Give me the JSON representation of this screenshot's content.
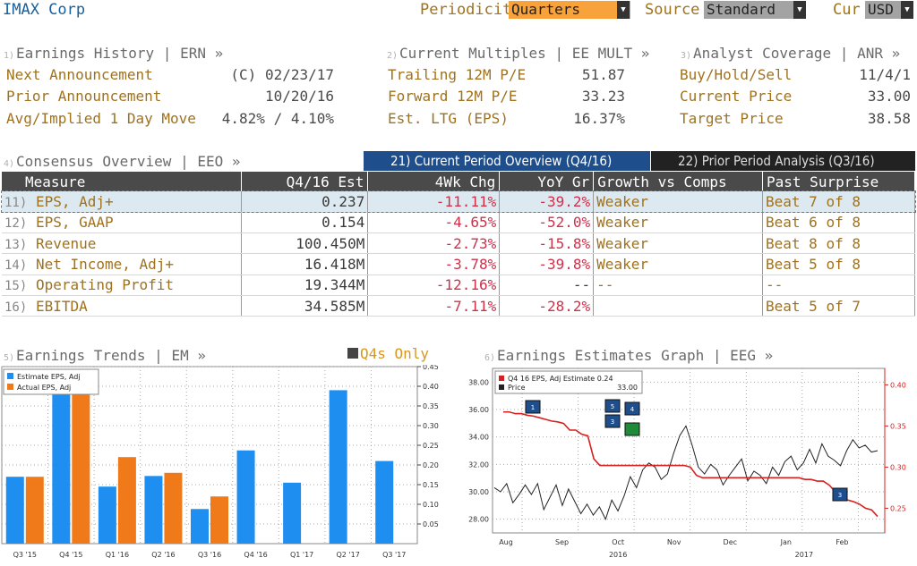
{
  "header": {
    "title": "IMAX Corp",
    "periodicity_label": "Periodicity",
    "periodicity_value": "Quarters",
    "source_label": "Source",
    "source_value": "Standard",
    "currency_label": "Cur",
    "currency_value": "USD"
  },
  "earnings_history": {
    "number": "1)",
    "heading": "Earnings History | ERN »",
    "rows": [
      {
        "label": "Next Announcement",
        "value": "(C)  02/23/17"
      },
      {
        "label": "Prior Announcement",
        "value": "10/20/16"
      },
      {
        "label": "Avg/Implied 1 Day Move",
        "value": "4.82% / 4.10%"
      }
    ]
  },
  "current_multiples": {
    "number": "2)",
    "heading": "Current Multiples | EE MULT »",
    "rows": [
      {
        "label": "Trailing 12M P/E",
        "value": "51.87"
      },
      {
        "label": "Forward 12M P/E",
        "value": "33.23"
      },
      {
        "label": "Est. LTG (EPS)",
        "value": "16.37%"
      }
    ]
  },
  "analyst_coverage": {
    "number": "3)",
    "heading": "Analyst Coverage | ANR »",
    "rows": [
      {
        "label": "Buy/Hold/Sell",
        "value": "11/4/1"
      },
      {
        "label": "Current Price",
        "value": "33.00"
      },
      {
        "label": "Target Price",
        "value": "38.58"
      }
    ]
  },
  "consensus": {
    "number": "4)",
    "heading": "Consensus Overview | EEO »",
    "tab_current": "21) Current Period Overview (Q4/16)",
    "tab_prior": "22) Prior Period Analysis (Q3/16)",
    "columns": [
      "Measure",
      "Q4/16 Est",
      "4Wk Chg",
      "YoY Gr",
      "Growth vs Comps",
      "Past Surprise"
    ],
    "rows": [
      {
        "num": "11)",
        "measure": "EPS, Adj+",
        "est": "0.237",
        "chg": "-11.11%",
        "yoy": "-39.2%",
        "growth": "Weaker",
        "surprise": "Beat 7 of 8"
      },
      {
        "num": "12)",
        "measure": "EPS, GAAP",
        "est": "0.154",
        "chg": "-4.65%",
        "yoy": "-52.0%",
        "growth": "Weaker",
        "surprise": "Beat 6 of 8"
      },
      {
        "num": "13)",
        "measure": "Revenue",
        "est": "100.450M",
        "chg": "-2.73%",
        "yoy": "-15.8%",
        "growth": "Weaker",
        "surprise": "Beat 8 of 8"
      },
      {
        "num": "14)",
        "measure": "Net Income, Adj+",
        "est": "16.418M",
        "chg": "-3.78%",
        "yoy": "-39.8%",
        "growth": "Weaker",
        "surprise": "Beat 5 of 8"
      },
      {
        "num": "15)",
        "measure": "Operating Profit",
        "est": "19.344M",
        "chg": "-12.16%",
        "yoy": "--",
        "growth": "--",
        "surprise": "--"
      },
      {
        "num": "16)",
        "measure": "EBITDA",
        "est": "34.585M",
        "chg": "-7.11%",
        "yoy": "-28.2%",
        "growth": "",
        "surprise": "Beat 5 of 7"
      }
    ]
  },
  "earnings_trends": {
    "number": "5)",
    "heading": "Earnings Trends | EM »",
    "toggle_label": "Q4s Only"
  },
  "earnings_graph": {
    "number": "6)",
    "heading": "Earnings Estimates Graph | EEG »"
  },
  "colors": {
    "estimate": "#1e8ff0",
    "actual": "#f07a1a",
    "price_line": "#222222",
    "estimate_line": "#d8201e",
    "amber": "#a0721e",
    "header_dark": "#4a4a4a",
    "tab_active": "#1f4e8c",
    "tab_inactive": "#222222",
    "dropdown_orange": "#f7a23b"
  },
  "chart_data": [
    {
      "type": "bar",
      "categories": [
        "Q3 '15",
        "Q4 '15",
        "Q1 '16",
        "Q2 '16",
        "Q3 '16",
        "Q4 '16",
        "Q1 '17",
        "Q2 '17",
        "Q3 '17"
      ],
      "series": [
        {
          "name": "Estimate EPS, Adj",
          "values": [
            0.17,
            0.43,
            0.145,
            0.172,
            0.088,
            0.237,
            0.155,
            0.39,
            0.21
          ]
        },
        {
          "name": "Actual EPS, Adj",
          "values": [
            0.17,
            0.43,
            0.22,
            0.18,
            0.12,
            null,
            null,
            null,
            null
          ]
        }
      ],
      "ylim": [
        0,
        0.45
      ],
      "yticks": [
        "0.05",
        "0.10",
        "0.15",
        "0.20",
        "0.25",
        "0.30",
        "0.35",
        "0.40",
        "0.45"
      ],
      "legend": "top-left",
      "grid": true
    },
    {
      "type": "line",
      "legend_entries": [
        {
          "name": "Q4 16 EPS, Adj Estimate",
          "value": "0.24"
        },
        {
          "name": "Price",
          "value": "33.00"
        }
      ],
      "x_labels": [
        "Aug",
        "Sep",
        "Oct",
        "Nov",
        "Dec",
        "Jan",
        "Feb"
      ],
      "year_labels": [
        "2016",
        "2017"
      ],
      "left_axis": {
        "ticks": [
          "28.00",
          "30.00",
          "32.00",
          "34.00",
          "36.00",
          "38.00"
        ],
        "ylim": [
          27,
          39
        ]
      },
      "right_axis": {
        "ticks": [
          "0.25",
          "0.30",
          "0.35",
          "0.40"
        ],
        "ylim": [
          0.22,
          0.42
        ]
      },
      "price_series": [
        30.3,
        30.0,
        30.6,
        29.2,
        29.8,
        30.5,
        29.8,
        30.6,
        28.7,
        29.6,
        30.5,
        29.0,
        30.2,
        29.3,
        28.4,
        29.1,
        28.3,
        28.9,
        28.0,
        29.4,
        28.6,
        29.7,
        31.1,
        30.3,
        31.6,
        32.1,
        31.8,
        30.9,
        31.3,
        32.8,
        34.1,
        34.8,
        33.4,
        31.8,
        31.3,
        32.0,
        31.6,
        30.5,
        31.2,
        31.8,
        32.4,
        30.8,
        31.5,
        31.2,
        30.6,
        31.8,
        31.2,
        32.2,
        32.6,
        31.6,
        32.1,
        33.1,
        32.1,
        33.5,
        32.6,
        32.3,
        31.9,
        33.0,
        33.8,
        33.2,
        33.4,
        32.9,
        33.0
      ],
      "estimate_series": [
        0.367,
        0.367,
        0.365,
        0.365,
        0.363,
        0.362,
        0.36,
        0.358,
        0.356,
        0.355,
        0.353,
        0.345,
        0.345,
        0.34,
        0.338,
        0.31,
        0.302,
        0.302,
        0.302,
        0.302,
        0.302,
        0.302,
        0.302,
        0.302,
        0.302,
        0.302,
        0.302,
        0.302,
        0.302,
        0.302,
        0.302,
        0.3,
        0.29,
        0.287,
        0.287,
        0.287,
        0.287,
        0.287,
        0.287,
        0.287,
        0.287,
        0.287,
        0.287,
        0.287,
        0.287,
        0.287,
        0.287,
        0.287,
        0.287,
        0.287,
        0.285,
        0.285,
        0.283,
        0.283,
        0.278,
        0.27,
        0.265,
        0.26,
        0.258,
        0.255,
        0.25,
        0.248,
        0.24
      ],
      "event_markers": [
        "1",
        "5",
        "4",
        "3",
        "3"
      ]
    }
  ]
}
